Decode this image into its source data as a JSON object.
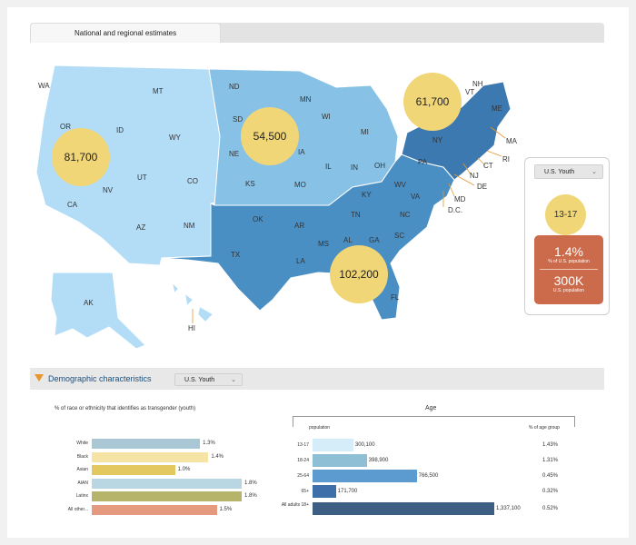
{
  "tabs": {
    "national": "National and regional estimates"
  },
  "region_bubbles": [
    {
      "id": "west",
      "value": "81,700"
    },
    {
      "id": "midwest",
      "value": "54,500"
    },
    {
      "id": "northeast",
      "value": "61,700"
    },
    {
      "id": "south",
      "value": "102,200"
    }
  ],
  "state_labels": [
    "WA",
    "MT",
    "OR",
    "ID",
    "WY",
    "NV",
    "UT",
    "CO",
    "CA",
    "AZ",
    "NM",
    "ND",
    "MN",
    "SD",
    "WI",
    "MI",
    "NE",
    "IA",
    "IL",
    "IN",
    "OH",
    "KS",
    "MO",
    "KY",
    "WV",
    "VA",
    "OK",
    "AR",
    "TN",
    "NC",
    "TX",
    "MS",
    "AL",
    "GA",
    "SC",
    "LA",
    "FL",
    "PA",
    "NY",
    "ME",
    "VT",
    "NH",
    "MA",
    "RI",
    "CT",
    "NJ",
    "DE",
    "MD",
    "D.C.",
    "AK",
    "HI"
  ],
  "colors": {
    "west": "#b3ddf7",
    "midwest": "#87c2e6",
    "south": "#4a8fc4",
    "northeast": "#3c79b0",
    "bubble": "#f1d677"
  },
  "side_panel": {
    "population_select": "U.S. Youth",
    "age_range": "13-17",
    "percent": "1.4%",
    "percent_label": "% of U.S. population",
    "count": "300K",
    "count_label": "U.S. population"
  },
  "demographics": {
    "title": "Demographic characteristics",
    "select": "U.S. Youth"
  },
  "race_chart": {
    "title": "% of race or ethnicity that identifies as transgender (youth)",
    "rows": [
      {
        "label": "White",
        "value": 1.3,
        "value_label": "1.3%",
        "color": "#a9c7d4"
      },
      {
        "label": "Black",
        "value": 1.4,
        "value_label": "1.4%",
        "color": "#f6e4a5"
      },
      {
        "label": "Asian",
        "value": 1.0,
        "value_label": "1.0%",
        "color": "#e3c860"
      },
      {
        "label": "AIAN",
        "value": 1.8,
        "value_label": "1.8%",
        "color": "#b8d7e3"
      },
      {
        "label": "Latinx",
        "value": 1.8,
        "value_label": "1.8%",
        "color": "#b6b46a"
      },
      {
        "label": "All other...",
        "value": 1.5,
        "value_label": "1.5%",
        "color": "#e59a7f"
      }
    ]
  },
  "age_chart": {
    "title": "Age",
    "col_population": "population",
    "col_pct": "% of age group",
    "rows": [
      {
        "label": "13-17",
        "population": 300100,
        "population_label": "300,100",
        "pct": "1.43%",
        "color": "#d4edf8"
      },
      {
        "label": "18-24",
        "population": 398900,
        "population_label": "398,900",
        "pct": "1.31%",
        "color": "#8fbfd4"
      },
      {
        "label": "25-64",
        "population": 766500,
        "population_label": "766,500",
        "pct": "0.45%",
        "color": "#5b9bd0"
      },
      {
        "label": "65+",
        "population": 171700,
        "population_label": "171,700",
        "pct": "0.32%",
        "color": "#3f6fa8"
      },
      {
        "label": "All adults 18+",
        "population": 1337100,
        "population_label": "1,337,100",
        "pct": "0.52%",
        "color": "#3d5f83"
      }
    ]
  }
}
